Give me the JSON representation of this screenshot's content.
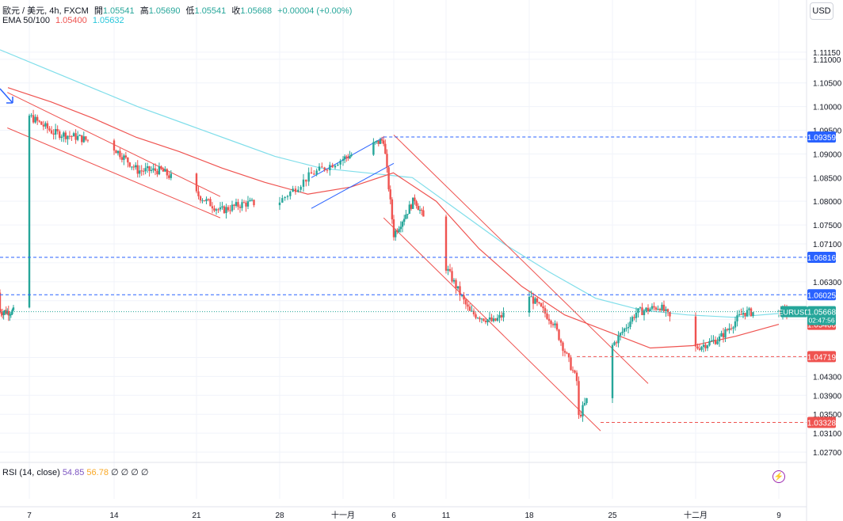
{
  "header": {
    "symbol": "歐元 / 美元, 4h, FXCM",
    "open_label": "開",
    "open": "1.05541",
    "high_label": "高",
    "high": "1.05690",
    "low_label": "低",
    "low": "1.05541",
    "close_label": "收",
    "close": "1.05668",
    "change": "+0.00004 (+0.00%)",
    "ema_label": "EMA 50/100",
    "ema50": "1.05400",
    "ema100": "1.05632"
  },
  "currency_button": "USD",
  "rsi": {
    "label": "RSI (14, close)",
    "value": "54.85",
    "ma": "56.78",
    "extra": "∅ ∅ ∅ ∅"
  },
  "colors": {
    "up": "#26a69a",
    "down": "#ef5350",
    "ema50": "#ef5350",
    "ema100": "#80deea",
    "channel_red": "#ef5350",
    "channel_blue": "#2962ff",
    "level": "#2962ff"
  },
  "chart_data": {
    "type": "candlestick",
    "title": "歐元 / 美元, 4h, FXCM",
    "symbol": "EURUSD",
    "ylim": [
      1.0255,
      1.1175
    ],
    "y_ticks": [
      "1.11150",
      "1.11000",
      "1.10500",
      "1.10000",
      "1.09500",
      "1.09000",
      "1.08500",
      "1.08000",
      "1.07500",
      "1.07100",
      "1.06700",
      "1.06300",
      "1.05900",
      "1.05500",
      "1.04700",
      "1.04300",
      "1.03900",
      "1.03500",
      "1.03100",
      "1.02700"
    ],
    "x_ticks": [
      "7",
      "14",
      "21",
      "28",
      "十一月",
      "6",
      "11",
      "18",
      "25",
      "十二月",
      "9"
    ],
    "price_markers": [
      {
        "label": "1.09359",
        "value": 1.09359,
        "color": "#2962ff",
        "dashed": true
      },
      {
        "label": "1.06816",
        "value": 1.06816,
        "color": "#2962ff",
        "dashed": true
      },
      {
        "label": "1.06025",
        "value": 1.06025,
        "color": "#2962ff",
        "dashed": true
      },
      {
        "label": "1.05632",
        "value": 1.05632,
        "color": "#80deea",
        "dashed": false
      },
      {
        "label": "1.05400",
        "value": 1.054,
        "color": "#ef5350",
        "dashed": false
      },
      {
        "label": "1.04719",
        "value": 1.04719,
        "color": "#ef5350",
        "dashed": true
      },
      {
        "label": "1.03328",
        "value": 1.03328,
        "color": "#ef5350",
        "dashed": true
      }
    ],
    "last_price": {
      "symbol": "EURUSD",
      "value": 1.05668,
      "label": "1.05668",
      "countdown": "02:47:56",
      "color": "#26a69a"
    },
    "close_series_approx": [
      [
        "2024-10-07",
        1.098
      ],
      [
        "2024-10-09",
        1.0945
      ],
      [
        "2024-10-11",
        1.0935
      ],
      [
        "2024-10-14",
        1.0912
      ],
      [
        "2024-10-16",
        1.0865
      ],
      [
        "2024-10-18",
        1.0865
      ],
      [
        "2024-10-21",
        1.0815
      ],
      [
        "2024-10-23",
        1.078
      ],
      [
        "2024-10-25",
        1.0795
      ],
      [
        "2024-10-28",
        1.08
      ],
      [
        "2024-10-30",
        1.0857
      ],
      [
        "2024-11-01",
        1.089
      ],
      [
        "2024-11-05",
        1.093
      ],
      [
        "2024-11-06",
        1.073
      ],
      [
        "2024-11-08",
        1.0805
      ],
      [
        "2024-11-11",
        1.066
      ],
      [
        "2024-11-13",
        1.0565
      ],
      [
        "2024-11-15",
        1.0545
      ],
      [
        "2024-11-18",
        1.06
      ],
      [
        "2024-11-20",
        1.0545
      ],
      [
        "2024-11-22",
        1.042
      ],
      [
        "2024-11-22",
        1.0335
      ],
      [
        "2024-11-25",
        1.0495
      ],
      [
        "2024-11-27",
        1.0565
      ],
      [
        "2024-11-29",
        1.0578
      ],
      [
        "2024-12-02",
        1.049
      ],
      [
        "2024-12-04",
        1.051
      ],
      [
        "2024-12-06",
        1.0565
      ],
      [
        "2024-12-09",
        1.0567
      ]
    ],
    "series": [
      {
        "name": "EMA 50",
        "values_approx": [
          1.104,
          1.101,
          1.0975,
          1.0935,
          1.0905,
          1.087,
          1.084,
          1.0815,
          1.083,
          1.086,
          1.08,
          1.07,
          1.062,
          1.056,
          1.0525,
          1.049,
          1.0495,
          1.0515,
          1.054
        ]
      },
      {
        "name": "EMA 100",
        "values_approx": [
          1.112,
          1.108,
          1.104,
          1.1,
          1.0965,
          1.093,
          1.0895,
          1.087,
          1.086,
          1.085,
          1.078,
          1.071,
          1.065,
          1.0595,
          1.057,
          1.056,
          1.0555,
          1.0563
        ]
      }
    ]
  }
}
